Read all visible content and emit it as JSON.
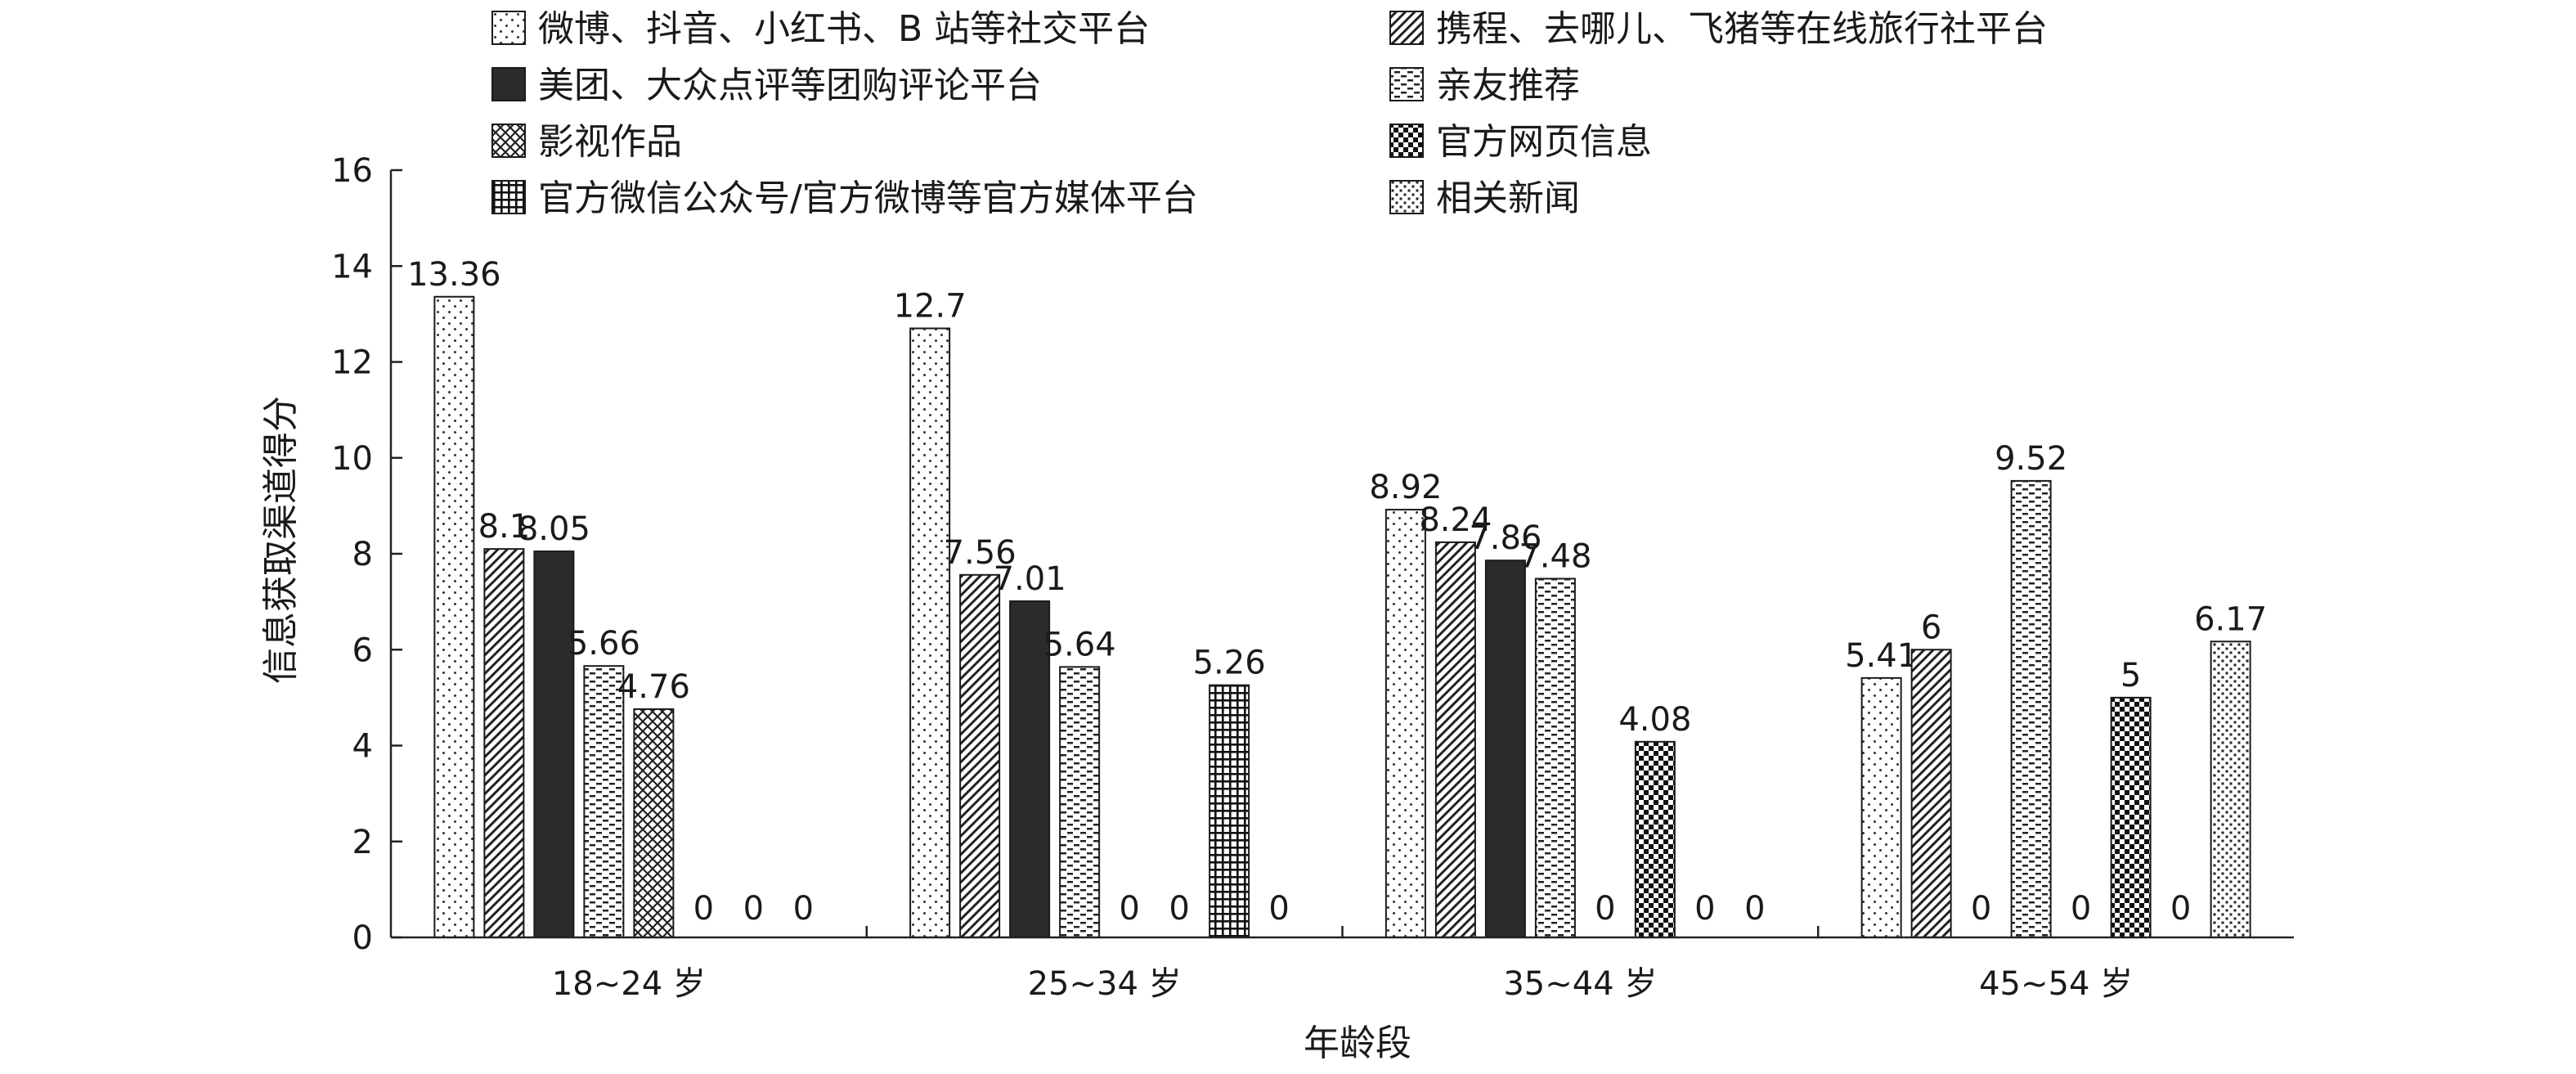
{
  "chart_data": {
    "type": "bar",
    "categories": [
      "18~24 岁",
      "25~34 岁",
      "35~44 岁",
      "45~54 岁"
    ],
    "series": [
      {
        "name": "微博、抖音、小红书、B 站等社交平台",
        "values": [
          13.36,
          12.7,
          8.92,
          5.41
        ],
        "pattern": "dots-sparse"
      },
      {
        "name": "携程、去哪儿、飞猪等在线旅行社平台",
        "values": [
          8.1,
          7.56,
          8.24,
          6
        ],
        "pattern": "diagonal"
      },
      {
        "name": "美团、大众点评等团购评论平台",
        "values": [
          8.05,
          7.01,
          7.86,
          0
        ],
        "pattern": "solid"
      },
      {
        "name": "亲友推荐",
        "values": [
          5.66,
          5.64,
          7.48,
          9.52
        ],
        "pattern": "dashes"
      },
      {
        "name": "影视作品",
        "values": [
          4.76,
          0,
          0,
          0
        ],
        "pattern": "crosshatch"
      },
      {
        "name": "官方网页信息",
        "values": [
          0,
          0,
          4.08,
          5
        ],
        "pattern": "checker"
      },
      {
        "name": "官方微信公众号/官方微博等官方媒体平台",
        "values": [
          0,
          5.26,
          0,
          0
        ],
        "pattern": "grid"
      },
      {
        "name": "相关新闻",
        "values": [
          0,
          0,
          0,
          6.17
        ],
        "pattern": "dots-dense"
      }
    ],
    "data_labels": [
      [
        "13.36",
        "8.1",
        "8.05",
        "5.66",
        "4.76",
        "0",
        "0",
        "0"
      ],
      [
        "12.7",
        "7.56",
        "7.01",
        "5.64",
        "0",
        "0",
        "5.26",
        "0"
      ],
      [
        "8.92",
        "8.24",
        "7.86",
        "7.48",
        "0",
        "4.08",
        "0",
        "0"
      ],
      [
        "5.41",
        "6",
        "0",
        "9.52",
        "0",
        "5",
        "0",
        "6.17"
      ]
    ],
    "xlabel": "年龄段",
    "ylabel": "信息获取渠道得分",
    "ylim": [
      0,
      16
    ],
    "yticks": [
      "0",
      "2",
      "4",
      "6",
      "8",
      "10",
      "12",
      "14",
      "16"
    ],
    "grid": false,
    "legend_placement": "top"
  }
}
